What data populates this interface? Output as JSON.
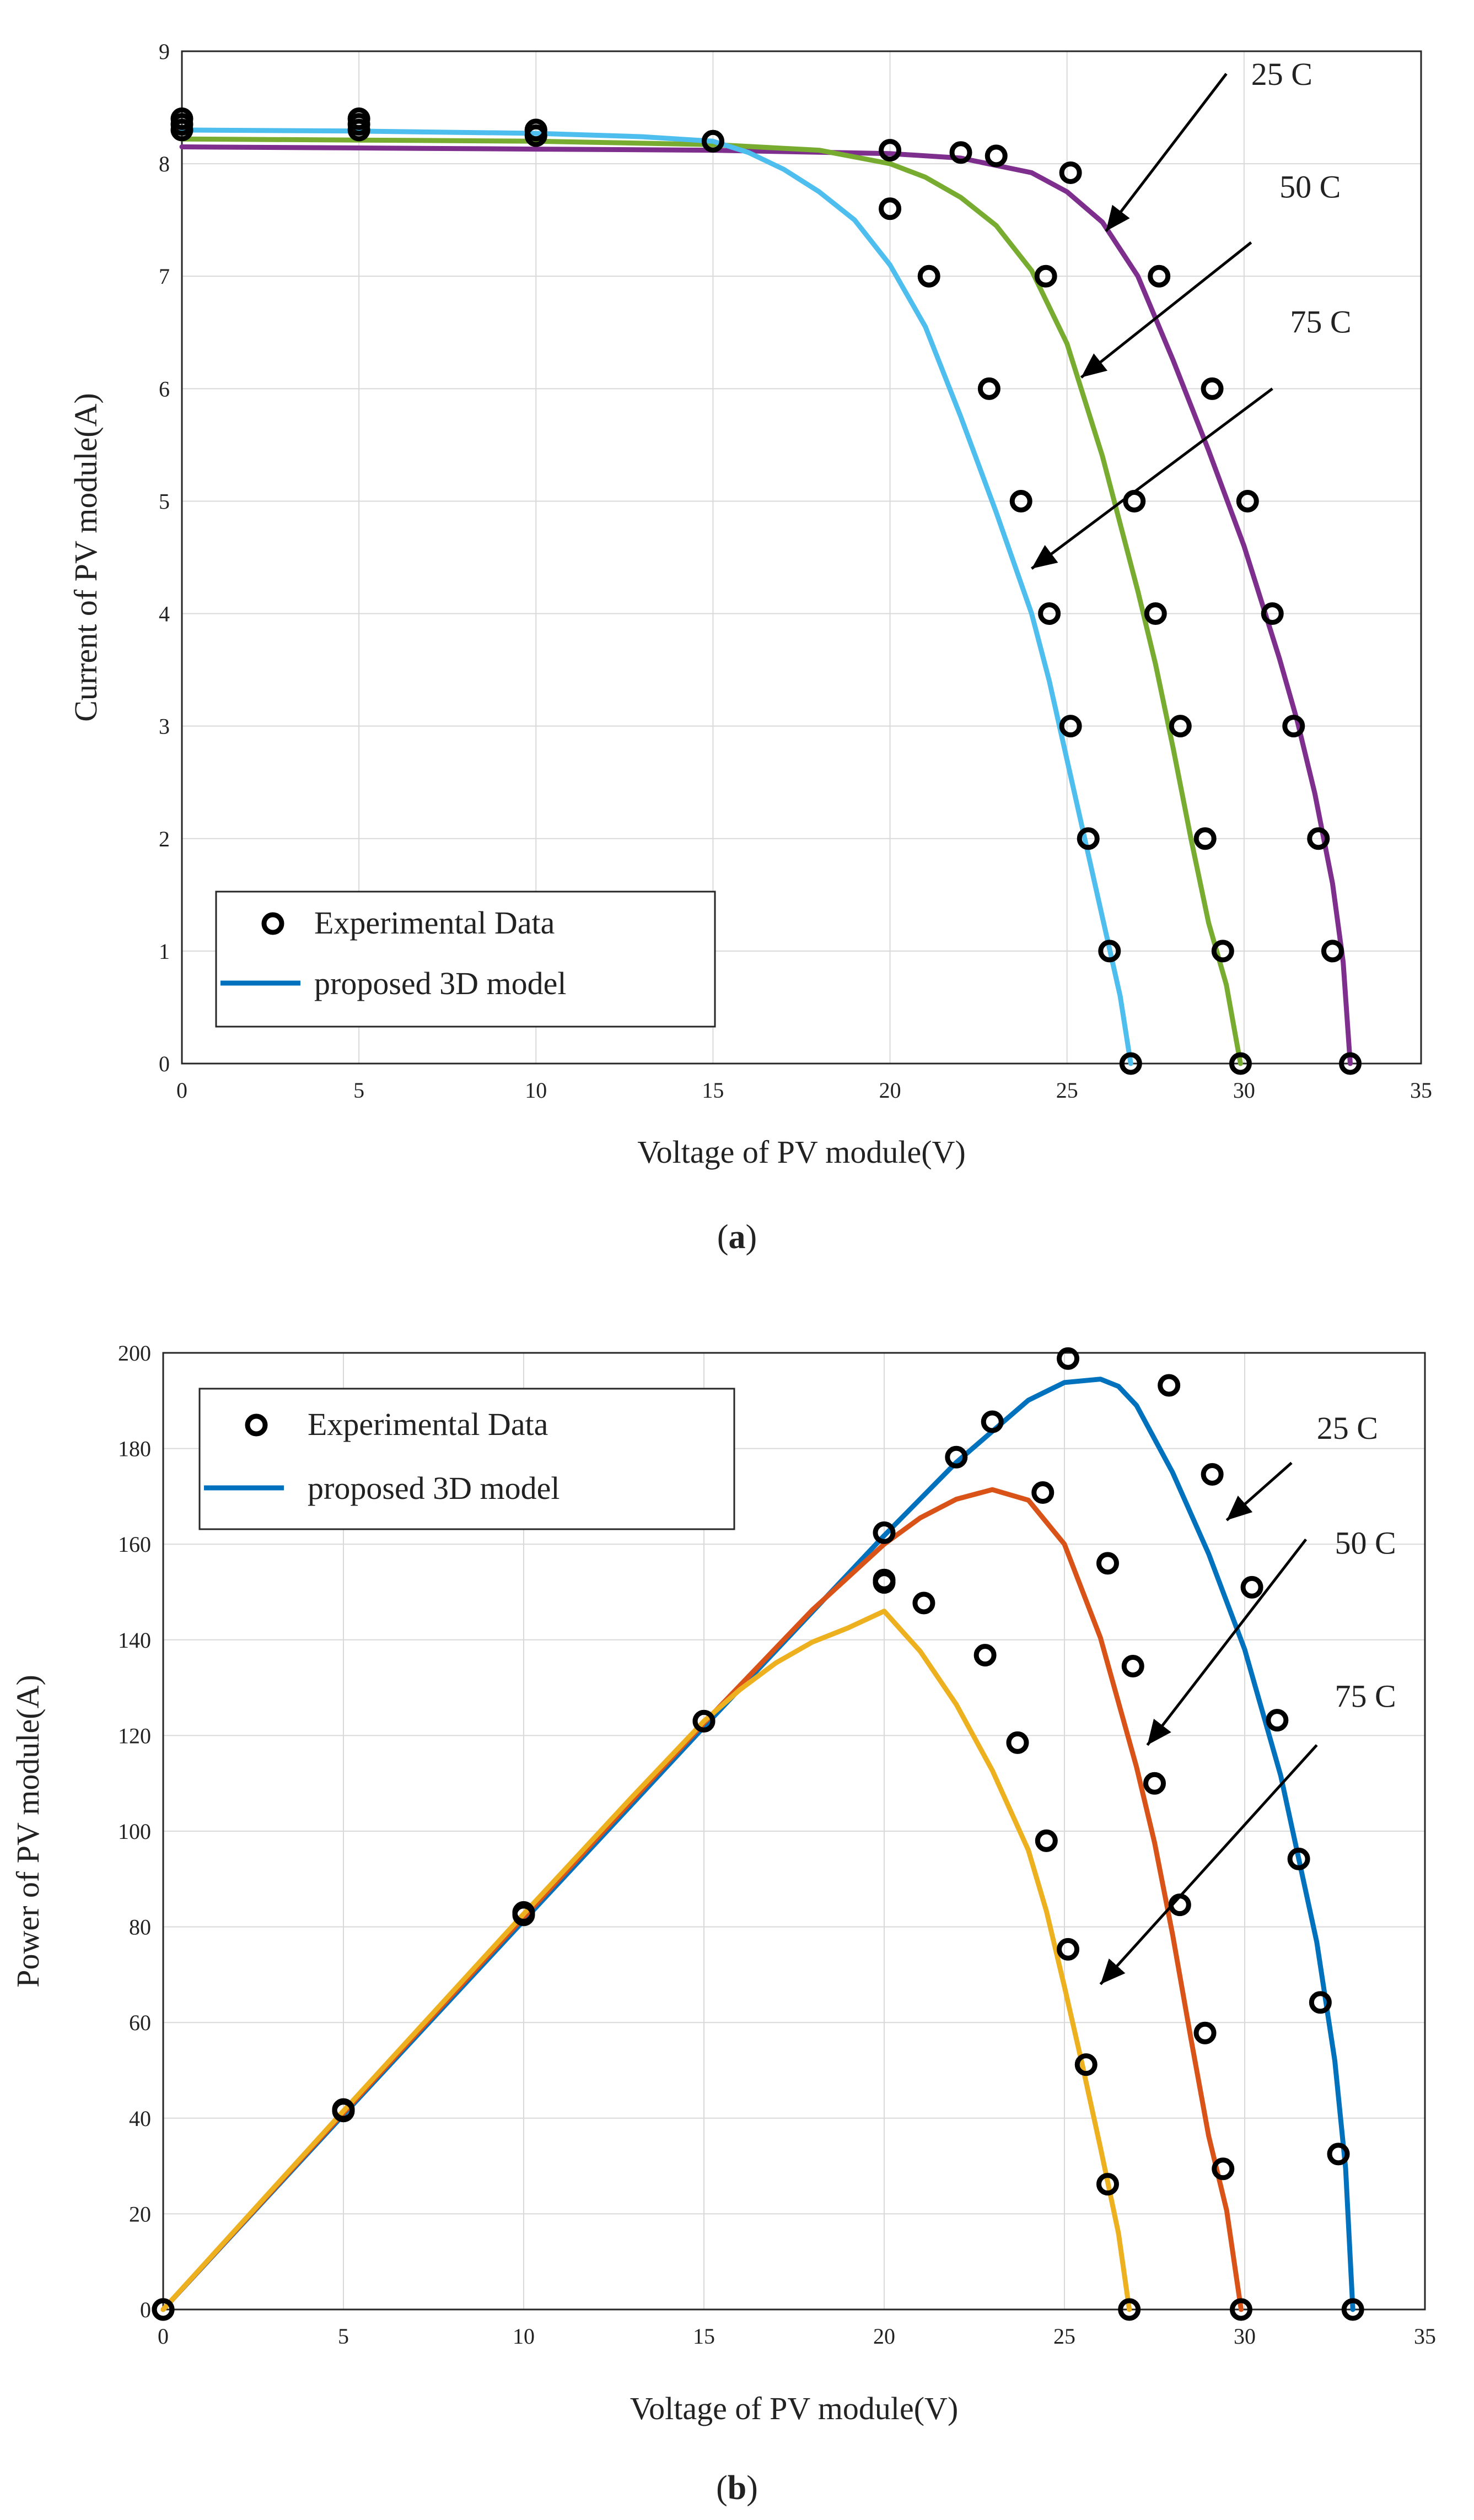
{
  "colors": {
    "purple_25C_a": "#7e2f8e",
    "green_50C_a": "#77ac30",
    "cyan_75C_a": "#4dbeee",
    "blue_25C_b": "#0072bd",
    "orange_50C_b": "#d95319",
    "yellow_75C_b": "#edb120",
    "marker": "#000000",
    "grid": "#d9d9d9"
  },
  "chart_data": [
    {
      "panel_label_open": "(",
      "panel_label_letter": "a",
      "panel_label_close": ")",
      "type": "line",
      "title": "",
      "xlabel": "Voltage of PV module(V)",
      "ylabel": "Current of PV module(A)",
      "xlim": [
        0,
        35
      ],
      "ylim": [
        0,
        9
      ],
      "xticks": [
        "0",
        "5",
        "10",
        "15",
        "20",
        "25",
        "30",
        "35"
      ],
      "yticks": [
        "0",
        "1",
        "2",
        "3",
        "4",
        "5",
        "6",
        "7",
        "8",
        "9"
      ],
      "grid": true,
      "legend": {
        "position": "bottom-left",
        "marker_label": "Experimental Data",
        "line_label": "proposed 3D model",
        "line_color": "#0072bd"
      },
      "annotations": [
        {
          "text": "25 C",
          "tail": [
            29.5,
            8.8
          ],
          "head": [
            26.1,
            7.4
          ],
          "label_at": [
            30.2,
            8.7
          ]
        },
        {
          "text": "50 C",
          "tail": [
            30.2,
            7.3
          ],
          "head": [
            25.4,
            6.1
          ],
          "label_at": [
            31.0,
            7.7
          ]
        },
        {
          "text": "75 C",
          "tail": [
            30.8,
            6.0
          ],
          "head": [
            24.0,
            4.4
          ],
          "label_at": [
            31.3,
            6.5
          ]
        }
      ],
      "series": [
        {
          "name": "25 C",
          "color": "#7e2f8e",
          "model": [
            [
              0,
              8.15
            ],
            [
              5,
              8.14
            ],
            [
              10,
              8.13
            ],
            [
              15,
              8.12
            ],
            [
              20,
              8.09
            ],
            [
              22,
              8.05
            ],
            [
              24,
              7.92
            ],
            [
              25,
              7.75
            ],
            [
              26,
              7.48
            ],
            [
              27,
              7.0
            ],
            [
              28,
              6.25
            ],
            [
              29,
              5.45
            ],
            [
              30,
              4.6
            ],
            [
              31,
              3.6
            ],
            [
              31.5,
              3.05
            ],
            [
              32,
              2.4
            ],
            [
              32.5,
              1.6
            ],
            [
              32.8,
              0.9
            ],
            [
              33.0,
              0
            ]
          ],
          "experimental": [
            [
              0,
              8.3
            ],
            [
              5,
              8.3
            ],
            [
              10,
              8.25
            ],
            [
              15,
              8.2
            ],
            [
              20,
              8.12
            ],
            [
              22,
              8.1
            ],
            [
              23,
              8.07
            ],
            [
              25.1,
              7.92
            ],
            [
              27.6,
              7.0
            ],
            [
              29.1,
              6.0
            ],
            [
              30.1,
              5.0
            ],
            [
              30.8,
              4.0
            ],
            [
              31.4,
              3.0
            ],
            [
              32.1,
              2.0
            ],
            [
              32.5,
              1.0
            ],
            [
              33.0,
              0
            ]
          ]
        },
        {
          "name": "50 C",
          "color": "#77ac30",
          "model": [
            [
              0,
              8.22
            ],
            [
              5,
              8.21
            ],
            [
              10,
              8.2
            ],
            [
              15,
              8.17
            ],
            [
              18,
              8.12
            ],
            [
              20,
              8.0
            ],
            [
              21,
              7.88
            ],
            [
              22,
              7.7
            ],
            [
              23,
              7.45
            ],
            [
              24,
              7.05
            ],
            [
              25,
              6.4
            ],
            [
              26,
              5.4
            ],
            [
              27,
              4.2
            ],
            [
              27.5,
              3.55
            ],
            [
              28,
              2.8
            ],
            [
              28.5,
              2.0
            ],
            [
              29,
              1.25
            ],
            [
              29.5,
              0.7
            ],
            [
              29.9,
              0
            ]
          ],
          "experimental": [
            [
              0,
              8.35
            ],
            [
              5,
              8.35
            ],
            [
              10,
              8.3
            ],
            [
              24.4,
              7.0
            ],
            [
              26.9,
              5.0
            ],
            [
              27.5,
              4.0
            ],
            [
              28.2,
              3.0
            ],
            [
              28.9,
              2.0
            ],
            [
              29.4,
              1.0
            ],
            [
              29.9,
              0
            ]
          ]
        },
        {
          "name": "75 C",
          "color": "#4dbeee",
          "model": [
            [
              0,
              8.3
            ],
            [
              5,
              8.29
            ],
            [
              10,
              8.27
            ],
            [
              13,
              8.24
            ],
            [
              15,
              8.2
            ],
            [
              16,
              8.1
            ],
            [
              17,
              7.95
            ],
            [
              18,
              7.75
            ],
            [
              19,
              7.5
            ],
            [
              20,
              7.1
            ],
            [
              21,
              6.55
            ],
            [
              22,
              5.75
            ],
            [
              23,
              4.9
            ],
            [
              24,
              4.0
            ],
            [
              24.5,
              3.4
            ],
            [
              25,
              2.7
            ],
            [
              25.5,
              2.0
            ],
            [
              26,
              1.3
            ],
            [
              26.5,
              0.6
            ],
            [
              26.8,
              0
            ]
          ],
          "experimental": [
            [
              0,
              8.4
            ],
            [
              5,
              8.4
            ],
            [
              10,
              8.3
            ],
            [
              15,
              8.2
            ],
            [
              20,
              7.6
            ],
            [
              21.1,
              7.0
            ],
            [
              22.8,
              6.0
            ],
            [
              23.7,
              5.0
            ],
            [
              24.5,
              4.0
            ],
            [
              25.1,
              3.0
            ],
            [
              25.6,
              2.0
            ],
            [
              26.2,
              1.0
            ],
            [
              26.8,
              0
            ]
          ]
        }
      ]
    },
    {
      "panel_label_open": "(",
      "panel_label_letter": "b",
      "panel_label_close": ")",
      "type": "line",
      "title": "",
      "xlabel": "Voltage of PV module(V)",
      "ylabel": "Power of PV module(A)",
      "xlim": [
        0,
        35
      ],
      "ylim": [
        0,
        200
      ],
      "xticks": [
        "0",
        "5",
        "10",
        "15",
        "20",
        "25",
        "30",
        "35"
      ],
      "yticks": [
        "0",
        "20",
        "40",
        "60",
        "80",
        "100",
        "120",
        "140",
        "160",
        "180",
        "200"
      ],
      "grid": true,
      "legend": {
        "position": "top-left",
        "marker_label": "Experimental Data",
        "line_label": "proposed 3D model",
        "line_color": "#0072bd"
      },
      "annotations": [
        {
          "text": "25 C",
          "tail": [
            31.3,
            177
          ],
          "head": [
            29.5,
            165
          ],
          "label_at": [
            32.0,
            182
          ]
        },
        {
          "text": "50 C",
          "tail": [
            31.7,
            161
          ],
          "head": [
            27.3,
            118
          ],
          "label_at": [
            32.5,
            158
          ]
        },
        {
          "text": "75 C",
          "tail": [
            32.0,
            118
          ],
          "head": [
            26.0,
            68
          ],
          "label_at": [
            32.5,
            126
          ]
        }
      ],
      "series": [
        {
          "name": "25 C",
          "color": "#0072bd",
          "model": [
            [
              0,
              0
            ],
            [
              5,
              40.7
            ],
            [
              10,
              81.3
            ],
            [
              15,
              121.8
            ],
            [
              20,
              161.8
            ],
            [
              22,
              177.1
            ],
            [
              24,
              190.1
            ],
            [
              25,
              193.8
            ],
            [
              26,
              194.5
            ],
            [
              26.5,
              193
            ],
            [
              27,
              189
            ],
            [
              28,
              175
            ],
            [
              29,
              158
            ],
            [
              30,
              138
            ],
            [
              31,
              111.6
            ],
            [
              32,
              76.8
            ],
            [
              32.5,
              52
            ],
            [
              32.8,
              29.5
            ],
            [
              33.0,
              0
            ]
          ],
          "experimental": [
            [
              0,
              0
            ],
            [
              5,
              41.5
            ],
            [
              10,
              82.5
            ],
            [
              15,
              123
            ],
            [
              20,
              162.4
            ],
            [
              22,
              178.2
            ],
            [
              23,
              185.6
            ],
            [
              25.1,
              198.8
            ],
            [
              27.9,
              193.2
            ],
            [
              29.1,
              174.6
            ],
            [
              30.2,
              151
            ],
            [
              30.9,
              123.2
            ],
            [
              31.5,
              94.2
            ],
            [
              32.1,
              64.2
            ],
            [
              32.6,
              32.5
            ],
            [
              33.0,
              0
            ]
          ]
        },
        {
          "name": "50 C",
          "color": "#d95319",
          "model": [
            [
              0,
              0
            ],
            [
              5,
              41.1
            ],
            [
              10,
              82.0
            ],
            [
              15,
              122.6
            ],
            [
              18,
              146.2
            ],
            [
              20,
              160
            ],
            [
              21,
              165.5
            ],
            [
              22,
              169.4
            ],
            [
              23,
              171.4
            ],
            [
              24,
              169.2
            ],
            [
              25,
              160
            ],
            [
              26,
              140.4
            ],
            [
              27,
              113.4
            ],
            [
              27.5,
              97.6
            ],
            [
              28,
              78.4
            ],
            [
              28.5,
              57
            ],
            [
              29,
              36.3
            ],
            [
              29.5,
              20.7
            ],
            [
              29.9,
              0
            ]
          ],
          "experimental": [
            [
              0,
              0
            ],
            [
              5,
              41.7
            ],
            [
              10,
              83
            ],
            [
              20,
              152.5
            ],
            [
              24.4,
              170.8
            ],
            [
              26.2,
              156
            ],
            [
              26.9,
              134.5
            ],
            [
              27.5,
              110
            ],
            [
              28.2,
              84.6
            ],
            [
              28.9,
              57.8
            ],
            [
              29.4,
              29.4
            ],
            [
              29.9,
              0
            ]
          ]
        },
        {
          "name": "75 C",
          "color": "#edb120",
          "model": [
            [
              0,
              0
            ],
            [
              5,
              41.5
            ],
            [
              10,
              82.7
            ],
            [
              13,
              107.1
            ],
            [
              15,
              123
            ],
            [
              16,
              129.6
            ],
            [
              17,
              135.2
            ],
            [
              18,
              139.5
            ],
            [
              19,
              142.5
            ],
            [
              20,
              146
            ],
            [
              21,
              137.6
            ],
            [
              22,
              126.5
            ],
            [
              23,
              112.7
            ],
            [
              24,
              96
            ],
            [
              24.5,
              83.3
            ],
            [
              25,
              67.5
            ],
            [
              25.5,
              51
            ],
            [
              26,
              33.8
            ],
            [
              26.5,
              15.9
            ],
            [
              26.8,
              0
            ]
          ],
          "experimental": [
            [
              0,
              0
            ],
            [
              5,
              41.8
            ],
            [
              10,
              83
            ],
            [
              15,
              123
            ],
            [
              20,
              152
            ],
            [
              21.1,
              147.7
            ],
            [
              22.8,
              136.8
            ],
            [
              23.7,
              118.5
            ],
            [
              24.5,
              98
            ],
            [
              25.1,
              75.3
            ],
            [
              25.6,
              51.2
            ],
            [
              26.2,
              26.2
            ],
            [
              26.8,
              0
            ]
          ]
        }
      ]
    }
  ]
}
